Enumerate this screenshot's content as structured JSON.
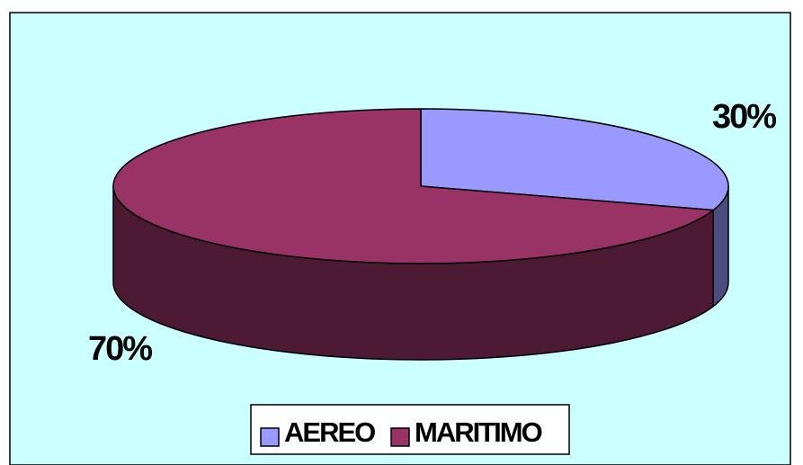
{
  "colors": {
    "plot_background": "#ccffff",
    "page_background": "#ffffff",
    "outline": "#000000",
    "aereo_top": "#9999ff",
    "aereo_side": "#4c4c80",
    "maritimo_top": "#993366",
    "maritimo_side": "#4d1a33"
  },
  "chart_data": {
    "type": "pie",
    "style": "3d",
    "categories": [
      "AEREO",
      "MARITIMO"
    ],
    "values": [
      30,
      70
    ],
    "data_labels": [
      "30%",
      "70%"
    ],
    "legend": {
      "position": "bottom",
      "entries": [
        "AEREO",
        "MARITIMO"
      ]
    }
  }
}
